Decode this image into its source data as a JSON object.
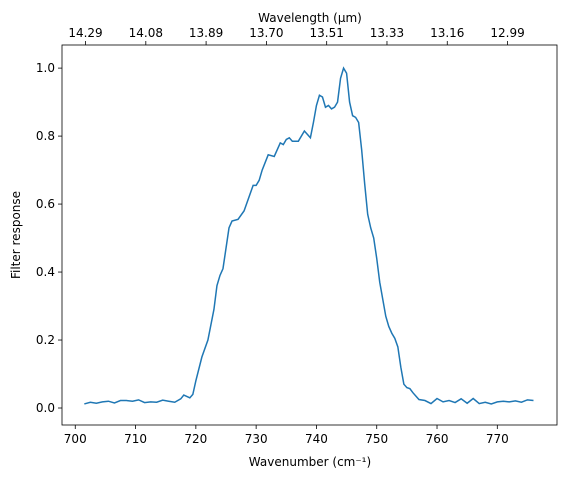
{
  "chart_data": {
    "type": "line",
    "xlabel": "Wavenumber (cm⁻¹)",
    "ylabel": "Filter response",
    "x2label": "Wavelength (μm)",
    "x": [
      701.5,
      702.5,
      703.5,
      704.5,
      705.5,
      706.5,
      707.5,
      708.5,
      709.5,
      710.5,
      711.5,
      712.5,
      713.5,
      714.5,
      715.5,
      716.5,
      717.5,
      718.0,
      719.0,
      719.5,
      720.0,
      721.0,
      722.0,
      723.0,
      723.5,
      724.0,
      724.5,
      725.0,
      725.5,
      726.0,
      727.0,
      728.0,
      729.0,
      729.5,
      730.0,
      730.5,
      731.0,
      732.0,
      733.0,
      734.0,
      734.5,
      735.0,
      735.5,
      736.0,
      737.0,
      738.0,
      739.0,
      739.5,
      740.0,
      740.5,
      741.0,
      741.5,
      742.0,
      742.5,
      743.0,
      743.5,
      744.0,
      744.5,
      745.0,
      745.5,
      746.0,
      746.5,
      747.0,
      747.5,
      748.0,
      748.5,
      749.0,
      749.5,
      750.0,
      750.5,
      751.0,
      751.5,
      752.0,
      752.5,
      753.0,
      753.5,
      754.0,
      754.5,
      755.0,
      755.5,
      756.0,
      757.0,
      758.0,
      759.0,
      760.0,
      761.0,
      762.0,
      763.0,
      764.0,
      765.0,
      766.0,
      767.0,
      768.0,
      769.0,
      770.0,
      771.0,
      772.0,
      773.0,
      774.0,
      775.0,
      776.0
    ],
    "series": [
      {
        "color": "#1f77b4",
        "values": [
          0.012,
          0.017,
          0.014,
          0.018,
          0.02,
          0.015,
          0.022,
          0.022,
          0.02,
          0.024,
          0.016,
          0.018,
          0.017,
          0.023,
          0.02,
          0.017,
          0.027,
          0.038,
          0.03,
          0.04,
          0.08,
          0.15,
          0.2,
          0.29,
          0.36,
          0.39,
          0.41,
          0.47,
          0.53,
          0.55,
          0.555,
          0.58,
          0.63,
          0.655,
          0.655,
          0.67,
          0.7,
          0.745,
          0.74,
          0.78,
          0.775,
          0.79,
          0.795,
          0.785,
          0.785,
          0.815,
          0.795,
          0.84,
          0.89,
          0.92,
          0.915,
          0.885,
          0.89,
          0.88,
          0.885,
          0.9,
          0.97,
          1.0,
          0.985,
          0.9,
          0.86,
          0.855,
          0.84,
          0.76,
          0.66,
          0.57,
          0.53,
          0.5,
          0.44,
          0.37,
          0.32,
          0.27,
          0.24,
          0.22,
          0.205,
          0.18,
          0.12,
          0.07,
          0.06,
          0.057,
          0.045,
          0.025,
          0.022,
          0.013,
          0.028,
          0.018,
          0.022,
          0.016,
          0.027,
          0.014,
          0.028,
          0.013,
          0.017,
          0.012,
          0.018,
          0.02,
          0.018,
          0.021,
          0.017,
          0.024,
          0.022
        ]
      }
    ],
    "xlim": [
      697.8,
      779.9
    ],
    "ylim": [
      -0.05,
      1.068
    ],
    "xticks": [
      700,
      710,
      720,
      730,
      740,
      750,
      760,
      770
    ],
    "yticks": [
      {
        "value": 0,
        "label": "0.0"
      },
      0.2,
      0.4,
      0.6,
      0.8,
      {
        "value": 1,
        "label": "1.0"
      }
    ],
    "x2ticks": [
      {
        "value": 701.7,
        "label": "14.29"
      },
      {
        "value": 711.7,
        "label": "14.08"
      },
      {
        "value": 721.7,
        "label": "13.89"
      },
      {
        "value": 731.7,
        "label": "13.70"
      },
      {
        "value": 741.7,
        "label": "13.51"
      },
      {
        "value": 751.7,
        "label": "13.33"
      },
      {
        "value": 761.7,
        "label": "13.16"
      },
      {
        "value": 771.7,
        "label": "12.99"
      }
    ]
  }
}
